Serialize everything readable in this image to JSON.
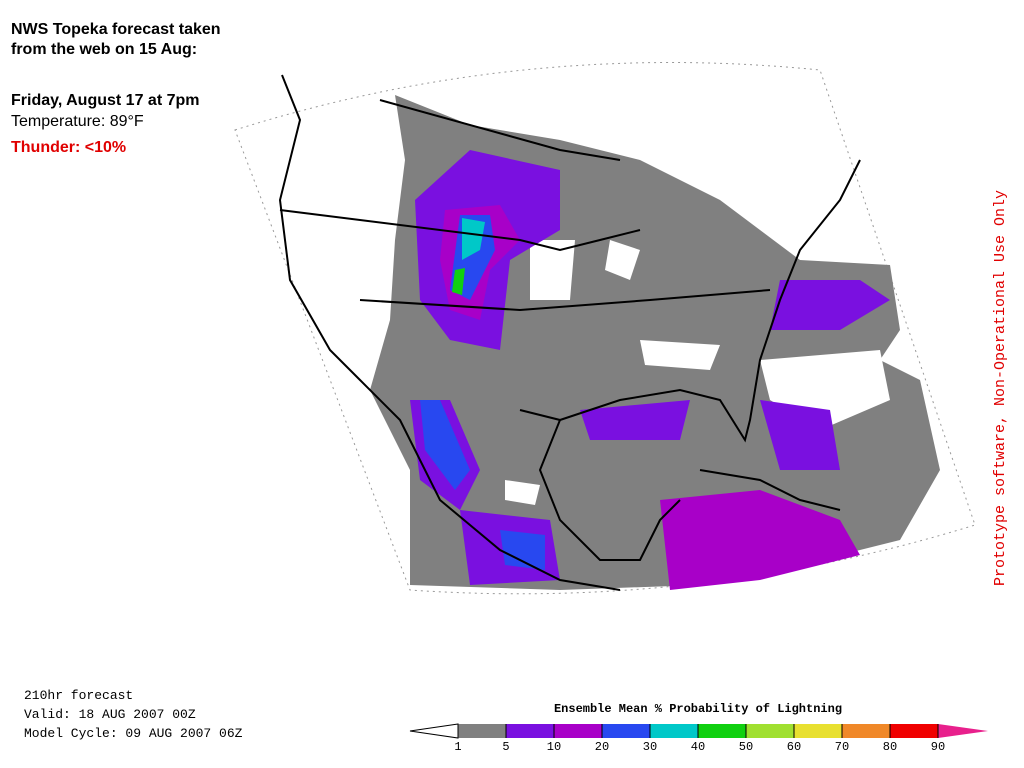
{
  "caption": {
    "lines": [
      "NWS Topeka forecast taken",
      "from the web on 15 Aug:"
    ],
    "date": "Friday, August 17 at 7pm",
    "temperature": "Temperature: 89°F",
    "thunder": "Thunder: <10%"
  },
  "side_note": "Prototype software, Non-Operational Use Only",
  "forecast_info": [
    "210hr forecast",
    "Valid: 18 AUG 2007 00Z",
    "Model Cycle: 09 AUG 2007 06Z"
  ],
  "legend": {
    "title": "Ensemble Mean % Probability of Lightning",
    "ticks": [
      1,
      5,
      10,
      20,
      30,
      40,
      50,
      60,
      70,
      80,
      90
    ],
    "colors": [
      "#808080",
      "#7a10e0",
      "#a800c8",
      "#2848f0",
      "#00c8c8",
      "#10d010",
      "#a0e030",
      "#e8e030",
      "#f08828",
      "#f00000"
    ],
    "over_color": "#e8208c"
  }
}
